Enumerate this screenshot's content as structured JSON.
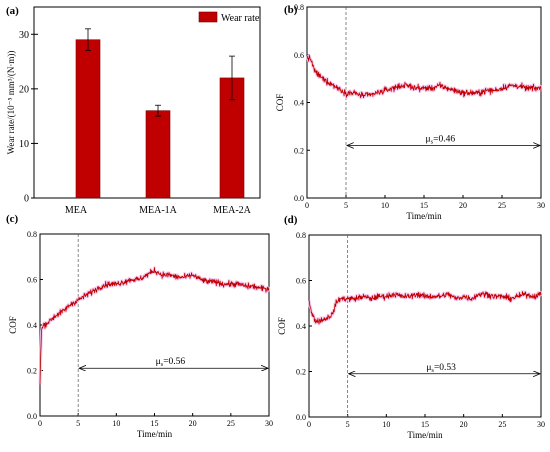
{
  "chart_data": [
    {
      "panel_label": "(a)",
      "type": "bar",
      "categories": [
        "MEA",
        "MEA-1A",
        "MEA-2A"
      ],
      "series": [
        {
          "name": "Wear rate",
          "values": [
            29,
            16,
            22
          ],
          "errors": [
            2,
            1,
            4
          ]
        }
      ],
      "ylabel": "Wear rate/(10⁻⁵ mm³/(N·m))",
      "ylim": [
        0,
        35
      ],
      "yticks": [
        "0",
        "10",
        "20",
        "30"
      ],
      "legend": "top-right",
      "bar_color": "#c00000"
    },
    {
      "panel_label": "(b)",
      "type": "line",
      "xlabel": "Time/min",
      "ylabel": "COF",
      "xlim": [
        0,
        30
      ],
      "ylim": [
        0,
        0.8
      ],
      "xticks": [
        "0",
        "5",
        "10",
        "15",
        "20",
        "25",
        "30"
      ],
      "yticks": [
        "0.0",
        "0.2",
        "0.4",
        "0.6",
        "0.8"
      ],
      "annotation": "μs=0.46",
      "marker_x": 5,
      "arrow_y": 0.22,
      "line_color": "#c00000",
      "points": [
        [
          0,
          0.59
        ],
        [
          0.5,
          0.58
        ],
        [
          1,
          0.53
        ],
        [
          2,
          0.5
        ],
        [
          3,
          0.48
        ],
        [
          4,
          0.46
        ],
        [
          5,
          0.44
        ],
        [
          6,
          0.44
        ],
        [
          7,
          0.43
        ],
        [
          8,
          0.43
        ],
        [
          9,
          0.44
        ],
        [
          10,
          0.45
        ],
        [
          11,
          0.46
        ],
        [
          12,
          0.47
        ],
        [
          13,
          0.47
        ],
        [
          14,
          0.46
        ],
        [
          15,
          0.46
        ],
        [
          16,
          0.46
        ],
        [
          17,
          0.47
        ],
        [
          18,
          0.46
        ],
        [
          19,
          0.45
        ],
        [
          20,
          0.44
        ],
        [
          21,
          0.44
        ],
        [
          22,
          0.44
        ],
        [
          23,
          0.45
        ],
        [
          24,
          0.45
        ],
        [
          25,
          0.46
        ],
        [
          26,
          0.47
        ],
        [
          27,
          0.47
        ],
        [
          28,
          0.46
        ],
        [
          29,
          0.46
        ],
        [
          30,
          0.46
        ]
      ]
    },
    {
      "panel_label": "(c)",
      "type": "line",
      "xlabel": "Time/min",
      "ylabel": "COF",
      "xlim": [
        0,
        30
      ],
      "ylim": [
        0,
        0.8
      ],
      "xticks": [
        "0",
        "5",
        "10",
        "15",
        "20",
        "25",
        "30"
      ],
      "yticks": [
        "0.0",
        "0.2",
        "0.4",
        "0.6",
        "0.8"
      ],
      "annotation": "μs=0.56",
      "marker_x": 5,
      "arrow_y": 0.21,
      "line_color": "#c00000",
      "points": [
        [
          0,
          0.15
        ],
        [
          0.2,
          0.38
        ],
        [
          0.5,
          0.4
        ],
        [
          1,
          0.41
        ],
        [
          2,
          0.44
        ],
        [
          3,
          0.46
        ],
        [
          4,
          0.49
        ],
        [
          5,
          0.51
        ],
        [
          6,
          0.53
        ],
        [
          7,
          0.55
        ],
        [
          8,
          0.57
        ],
        [
          9,
          0.58
        ],
        [
          10,
          0.58
        ],
        [
          11,
          0.59
        ],
        [
          12,
          0.6
        ],
        [
          13,
          0.6
        ],
        [
          14,
          0.62
        ],
        [
          15,
          0.64
        ],
        [
          16,
          0.62
        ],
        [
          17,
          0.62
        ],
        [
          18,
          0.61
        ],
        [
          19,
          0.61
        ],
        [
          20,
          0.62
        ],
        [
          21,
          0.6
        ],
        [
          22,
          0.59
        ],
        [
          23,
          0.59
        ],
        [
          24,
          0.58
        ],
        [
          25,
          0.58
        ],
        [
          26,
          0.58
        ],
        [
          27,
          0.57
        ],
        [
          28,
          0.57
        ],
        [
          29,
          0.56
        ],
        [
          30,
          0.56
        ]
      ]
    },
    {
      "panel_label": "(d)",
      "type": "line",
      "xlabel": "Time/min",
      "ylabel": "COF",
      "xlim": [
        0,
        30
      ],
      "ylim": [
        0,
        0.8
      ],
      "xticks": [
        "0",
        "5",
        "10",
        "15",
        "20",
        "25",
        "30"
      ],
      "yticks": [
        "0.0",
        "0.2",
        "0.4",
        "0.6",
        "0.8"
      ],
      "annotation": "μs=0.53",
      "marker_x": 5,
      "arrow_y": 0.19,
      "line_color": "#c00000",
      "points": [
        [
          0,
          0.52
        ],
        [
          0.3,
          0.46
        ],
        [
          0.7,
          0.43
        ],
        [
          1,
          0.42
        ],
        [
          2,
          0.43
        ],
        [
          3,
          0.45
        ],
        [
          3.5,
          0.5
        ],
        [
          4,
          0.52
        ],
        [
          5,
          0.52
        ],
        [
          6,
          0.52
        ],
        [
          7,
          0.53
        ],
        [
          8,
          0.52
        ],
        [
          9,
          0.53
        ],
        [
          10,
          0.53
        ],
        [
          11,
          0.54
        ],
        [
          12,
          0.53
        ],
        [
          13,
          0.53
        ],
        [
          14,
          0.54
        ],
        [
          15,
          0.53
        ],
        [
          16,
          0.53
        ],
        [
          17,
          0.53
        ],
        [
          18,
          0.54
        ],
        [
          19,
          0.52
        ],
        [
          20,
          0.53
        ],
        [
          21,
          0.52
        ],
        [
          22,
          0.54
        ],
        [
          23,
          0.54
        ],
        [
          24,
          0.53
        ],
        [
          25,
          0.53
        ],
        [
          26,
          0.52
        ],
        [
          27,
          0.53
        ],
        [
          28,
          0.54
        ],
        [
          29,
          0.53
        ],
        [
          30,
          0.54
        ]
      ]
    }
  ]
}
